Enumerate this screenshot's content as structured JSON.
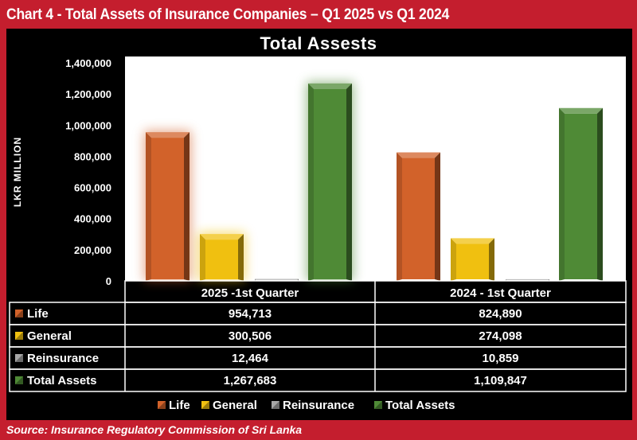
{
  "header": {
    "title": "Chart 4 - Total Assets of Insurance Companies – Q1 2025 vs Q1 2024"
  },
  "footer": {
    "source": "Source: Insurance Regulatory Commission of Sri Lanka"
  },
  "colors": {
    "frame": "#c41e2e",
    "life": "#d2622a",
    "general": "#f0c010",
    "reinsurance": "#a6a6a6",
    "total_assets": "#4f8a36",
    "panel": "#000000",
    "plot_bg": "#ffffff"
  },
  "chart_data": {
    "type": "bar",
    "title": "Total Assests",
    "ylabel": "LKR MILLION",
    "xlabel": "",
    "ylim": [
      0,
      1400000
    ],
    "y_ticks": [
      0,
      200000,
      400000,
      600000,
      800000,
      1000000,
      1200000,
      1400000
    ],
    "y_tick_labels": [
      "0",
      "200,000",
      "400,000",
      "600,000",
      "800,000",
      "1,000,000",
      "1,200,000",
      "1,400,000"
    ],
    "categories": [
      "2025 -1st Quarter",
      "2024 - 1st  Quarter"
    ],
    "series": [
      {
        "name": "Life",
        "values": [
          954713,
          824890
        ],
        "labels": [
          "954,713",
          "824,890"
        ],
        "color": "#d2622a"
      },
      {
        "name": "General",
        "values": [
          300506,
          274098
        ],
        "labels": [
          "300,506",
          "274,098"
        ],
        "color": "#f0c010"
      },
      {
        "name": "Reinsurance",
        "values": [
          12464,
          10859
        ],
        "labels": [
          "12,464",
          "10,859"
        ],
        "color": "#a6a6a6"
      },
      {
        "name": "Total Assets",
        "values": [
          1267683,
          1109847
        ],
        "labels": [
          "1,267,683",
          "1,109,847"
        ],
        "color": "#4f8a36"
      }
    ],
    "legend_position": "bottom",
    "grid": false,
    "data_table": true
  }
}
